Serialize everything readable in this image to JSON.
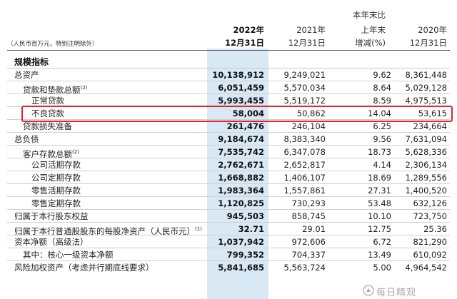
{
  "header": {
    "note": "（人民币百万元，特别注明除外）",
    "col1_line1": "2022年",
    "col1_line2": "12月31日",
    "col2_line1": "2021年",
    "col2_line2": "12月31日",
    "col3_line0": "本年末比",
    "col3_line1": "上年末",
    "col3_line2": "增减(%)",
    "col4_line1": "2020年",
    "col4_line2": "12月31日"
  },
  "section_title": "规模指标",
  "rows": [
    {
      "label": "总资产",
      "note": "",
      "v1": "10,138,912",
      "v2": "9,249,021",
      "v3": "9.62",
      "v4": "8,361,448"
    },
    {
      "label": "贷款和垫款总额",
      "note": "(2)",
      "v1": "6,051,459",
      "v2": "5,570,034",
      "v3": "8.64",
      "v4": "5,029,128"
    },
    {
      "label": "正常贷款",
      "note": "",
      "v1": "5,993,455",
      "v2": "5,519,172",
      "v3": "8.59",
      "v4": "4,975,513"
    },
    {
      "label": "不良贷款",
      "note": "",
      "v1": "58,004",
      "v2": "50,862",
      "v3": "14.04",
      "v4": "53,615"
    },
    {
      "label": "贷款损失准备",
      "note": "",
      "v1": "261,476",
      "v2": "246,104",
      "v3": "6.25",
      "v4": "234,664"
    },
    {
      "label": "总负债",
      "note": "",
      "v1": "9,184,674",
      "v2": "8,383,340",
      "v3": "9.56",
      "v4": "7,631,094"
    },
    {
      "label": "客户存款总额",
      "note": "(2)",
      "v1": "7,535,742",
      "v2": "6,347,078",
      "v3": "18.73",
      "v4": "5,628,336"
    },
    {
      "label": "公司活期存款",
      "note": "",
      "v1": "2,762,671",
      "v2": "2,652,817",
      "v3": "4.14",
      "v4": "2,306,134"
    },
    {
      "label": "公司定期存款",
      "note": "",
      "v1": "1,668,882",
      "v2": "1,406,107",
      "v3": "18.69",
      "v4": "1,289,556"
    },
    {
      "label": "零售活期存款",
      "note": "",
      "v1": "1,983,364",
      "v2": "1,557,861",
      "v3": "27.31",
      "v4": "1,400,520"
    },
    {
      "label": "零售定期存款",
      "note": "",
      "v1": "1,120,825",
      "v2": "730,293",
      "v3": "53.48",
      "v4": "632,126"
    },
    {
      "label": "归属于本行股东权益",
      "note": "",
      "v1": "945,503",
      "v2": "858,745",
      "v3": "10.10",
      "v4": "723,750"
    },
    {
      "label": "归属于本行普通股股东的每股净资产（人民币元）",
      "note": "(1)",
      "v1": "32.71",
      "v2": "29.01",
      "v3": "12.75",
      "v4": "25.36"
    },
    {
      "label": "资本净额（高级法）",
      "note": "",
      "v1": "1,037,942",
      "v2": "972,606",
      "v3": "6.72",
      "v4": "821,290"
    },
    {
      "label": "其中：核心一级资本净额",
      "note": "",
      "v1": "799,352",
      "v2": "704,337",
      "v3": "13.49",
      "v4": "610,092"
    },
    {
      "label": "风险加权资产（考虑并行期底线要求）",
      "note": "",
      "v1": "5,841,685",
      "v2": "5,563,724",
      "v3": "5.00",
      "v4": "4,964,542"
    }
  ],
  "watermark": "每日精观",
  "highlight_color": "#e0262c",
  "column_highlight_color": "#d9e8f5"
}
